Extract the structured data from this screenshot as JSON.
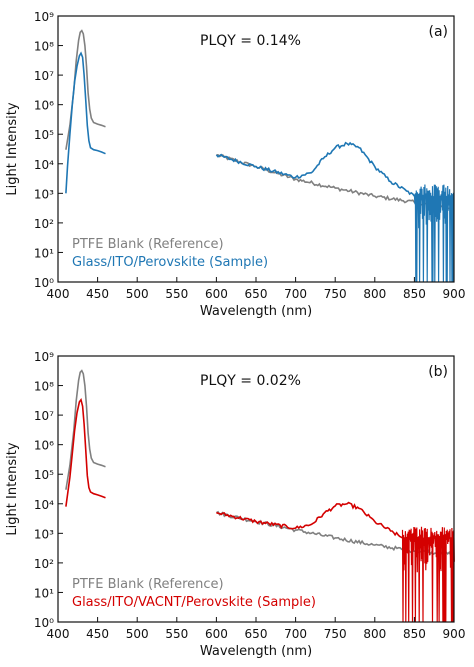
{
  "colors": {
    "reference": "#808080",
    "sample_a": "#1f77b4",
    "sample_b": "#d40000",
    "axis": "#111111"
  },
  "chart_data": [
    {
      "type": "line",
      "panel_label": "(a)",
      "annotation": "PLQY = 0.14%",
      "xlabel": "Wavelength (nm)",
      "ylabel": "Light Intensity",
      "xlim": [
        400,
        900
      ],
      "ylim": [
        1,
        1000000000
      ],
      "yscale": "log",
      "grid": false,
      "legend_position": "bottom-left",
      "x_ticks": [
        400,
        450,
        500,
        550,
        600,
        650,
        700,
        750,
        800,
        850,
        900
      ],
      "y_ticks": [
        "10⁰",
        "10¹",
        "10²",
        "10³",
        "10⁴",
        "10⁵",
        "10⁶",
        "10⁷",
        "10⁸",
        "10⁹"
      ],
      "series": [
        {
          "name": "PTFE Blank (Reference)",
          "color": "#808080",
          "segments": [
            {
              "x": [
                410,
                415,
                420,
                423,
                426,
                428,
                430,
                432,
                434,
                436,
                438,
                440,
                442,
                445,
                450,
                455,
                460
              ],
              "y": [
                30000,
                200000,
                3000000,
                30000000,
                150000000,
                280000000,
                320000000,
                250000000,
                100000000,
                20000000,
                2500000,
                700000,
                350000,
                250000,
                220000,
                200000,
                180000
              ]
            },
            {
              "x": [
                600,
                650,
                700,
                750,
                800,
                850,
                900
              ],
              "y": [
                20000,
                8000,
                3000,
                1500,
                800,
                500,
                300
              ]
            }
          ]
        },
        {
          "name": "Glass/ITO/Perovskite (Sample)",
          "color": "#1f77b4",
          "segments": [
            {
              "x": [
                410,
                412,
                415,
                418,
                421,
                424,
                427,
                429,
                431,
                433,
                435,
                437,
                439,
                441,
                445,
                450,
                455,
                460
              ],
              "y": [
                1000,
                8000,
                100000,
                1000000,
                6000000,
                20000000,
                45000000,
                55000000,
                40000000,
                10000000,
                1500000,
                200000,
                60000,
                35000,
                30000,
                28000,
                25000,
                22000
              ]
            },
            {
              "x": [
                600,
                650,
                700,
                720,
                735,
                750,
                765,
                780,
                800,
                820,
                840,
                850
              ],
              "y": [
                20000,
                8000,
                3500,
                5000,
                15000,
                35000,
                48000,
                35000,
                8000,
                2500,
                1200,
                800
              ]
            }
          ],
          "noise_region": [
            850,
            900
          ]
        }
      ]
    },
    {
      "type": "line",
      "panel_label": "(b)",
      "annotation": "PLQY = 0.02%",
      "xlabel": "Wavelength (nm)",
      "ylabel": "Light Intensity",
      "xlim": [
        400,
        900
      ],
      "ylim": [
        1,
        1000000000
      ],
      "yscale": "log",
      "grid": false,
      "legend_position": "bottom-left",
      "x_ticks": [
        400,
        450,
        500,
        550,
        600,
        650,
        700,
        750,
        800,
        850,
        900
      ],
      "y_ticks": [
        "10⁰",
        "10¹",
        "10²",
        "10³",
        "10⁴",
        "10⁵",
        "10⁶",
        "10⁷",
        "10⁸",
        "10⁹"
      ],
      "series": [
        {
          "name": "PTFE Blank (Reference)",
          "color": "#808080",
          "segments": [
            {
              "x": [
                410,
                415,
                420,
                423,
                426,
                428,
                430,
                432,
                434,
                436,
                438,
                440,
                442,
                445,
                450,
                455,
                460
              ],
              "y": [
                30000,
                200000,
                3000000,
                30000000,
                150000000,
                280000000,
                320000000,
                250000000,
                100000000,
                20000000,
                2500000,
                700000,
                350000,
                250000,
                220000,
                200000,
                180000
              ]
            },
            {
              "x": [
                600,
                650,
                700,
                750,
                800,
                850,
                900
              ],
              "y": [
                5000,
                2500,
                1300,
                700,
                400,
                250,
                200
              ]
            }
          ]
        },
        {
          "name": "Glass/ITO/VACNT/Perovskite (Sample)",
          "color": "#d40000",
          "segments": [
            {
              "x": [
                410,
                412,
                415,
                418,
                421,
                424,
                427,
                429,
                431,
                433,
                435,
                437,
                439,
                441,
                445,
                450,
                455,
                460
              ],
              "y": [
                8000,
                20000,
                80000,
                500000,
                3000000,
                12000000,
                28000000,
                33000000,
                20000000,
                5000000,
                700000,
                90000,
                35000,
                25000,
                22000,
                20000,
                18000,
                16000
              ]
            },
            {
              "x": [
                600,
                650,
                700,
                720,
                735,
                750,
                765,
                780,
                800,
                820,
                835
              ],
              "y": [
                5000,
                2500,
                1500,
                2000,
                4500,
                8500,
                10000,
                7000,
                2500,
                1200,
                700
              ]
            }
          ],
          "noise_region": [
            835,
            900
          ]
        }
      ]
    }
  ]
}
